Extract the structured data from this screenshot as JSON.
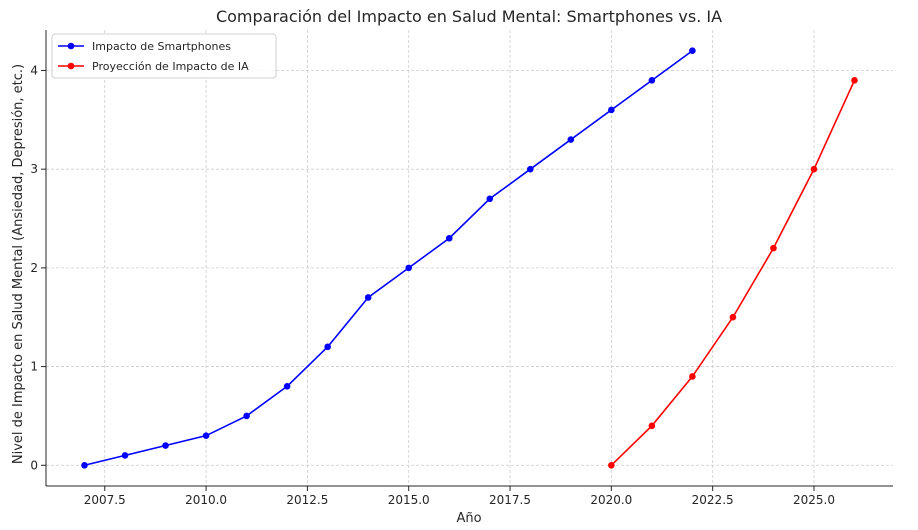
{
  "chart_data": {
    "type": "line",
    "title": "Comparación del Impacto en Salud Mental: Smartphones vs. IA",
    "xlabel": "Año",
    "ylabel": "Nivel de Impacto en Salud Mental (Ansiedad, Depresión, etc.)",
    "xlim": [
      2006.05,
      2026.95
    ],
    "ylim": [
      -0.21,
      4.41
    ],
    "xticks": [
      2007.5,
      2010.0,
      2012.5,
      2015.0,
      2017.5,
      2020.0,
      2022.5,
      2025.0
    ],
    "xtick_labels": [
      "2007.5",
      "2010.0",
      "2012.5",
      "2015.0",
      "2017.5",
      "2020.0",
      "2022.5",
      "2025.0"
    ],
    "yticks": [
      0,
      1,
      2,
      3,
      4
    ],
    "ytick_labels": [
      "0",
      "1",
      "2",
      "3",
      "4"
    ],
    "grid": true,
    "legend_position": "top-left",
    "series": [
      {
        "name": "Impacto de Smartphones",
        "color": "#0000ff",
        "x": [
          2007,
          2008,
          2009,
          2010,
          2011,
          2012,
          2013,
          2014,
          2015,
          2016,
          2017,
          2018,
          2019,
          2020,
          2021,
          2022
        ],
        "y": [
          0,
          0.1,
          0.2,
          0.3,
          0.5,
          0.8,
          1.2,
          1.7,
          2.0,
          2.3,
          2.7,
          3.0,
          3.3,
          3.6,
          3.9,
          4.2
        ]
      },
      {
        "name": "Proyección de Impacto de IA",
        "color": "#ff0000",
        "x": [
          2020,
          2021,
          2022,
          2023,
          2024,
          2025,
          2026
        ],
        "y": [
          0,
          0.4,
          0.9,
          1.5,
          2.2,
          3.0,
          3.9
        ]
      }
    ]
  }
}
